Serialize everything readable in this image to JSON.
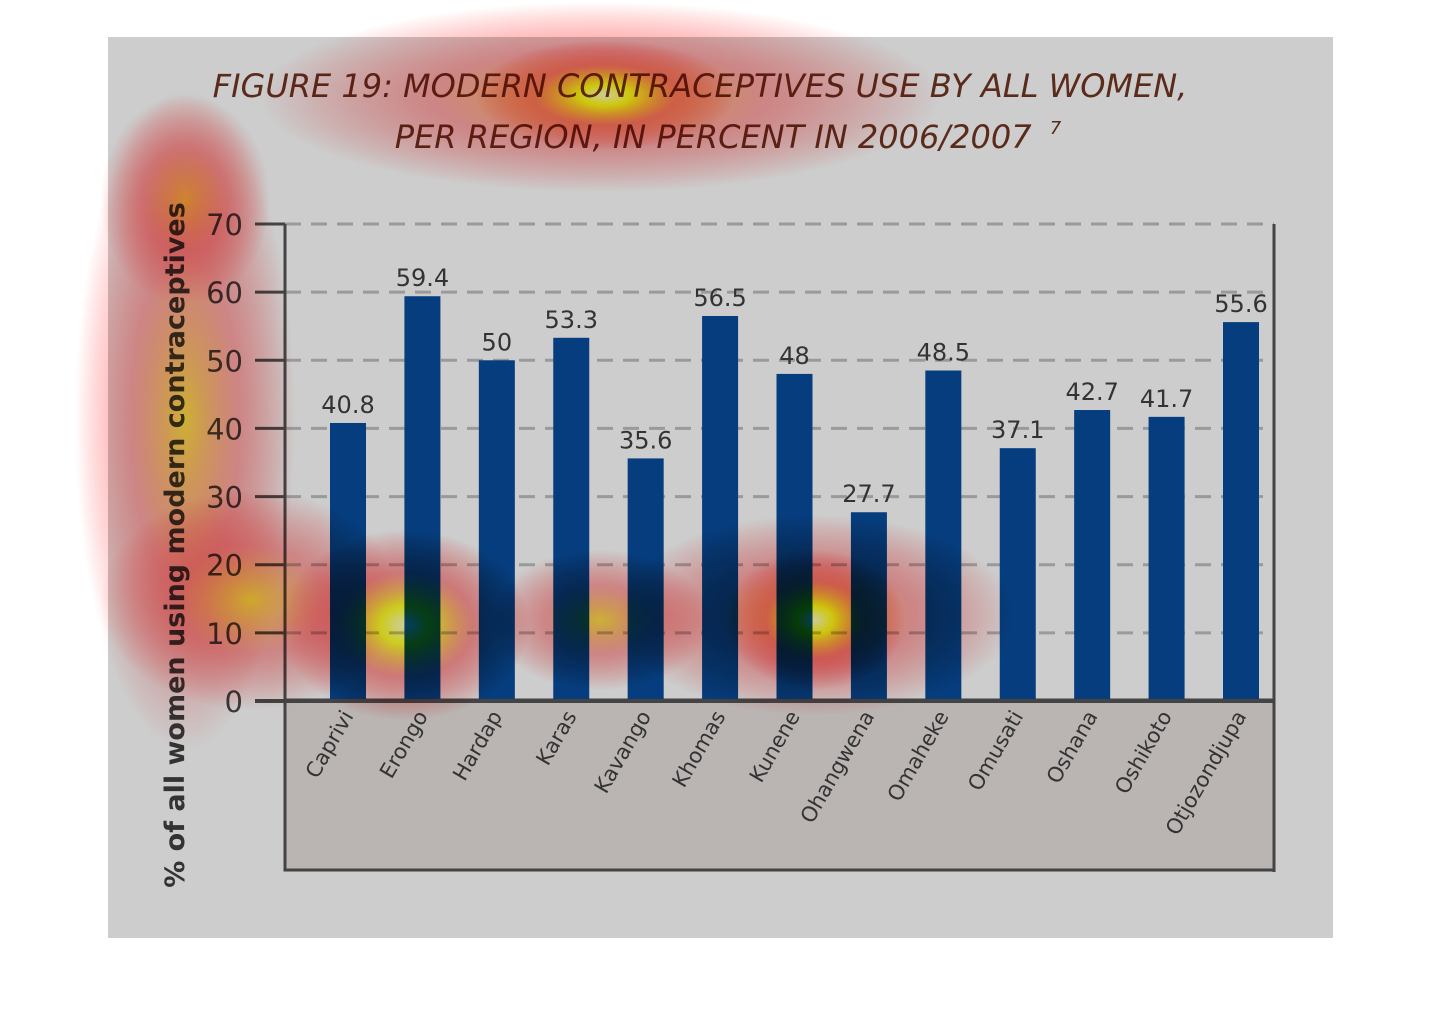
{
  "chart_data": {
    "type": "bar",
    "title_line1": "FIGURE 19: MODERN CONTRACEPTIVES USE BY ALL WOMEN,",
    "title_line2": "PER REGION, IN PERCENT IN 2006/2007",
    "title_footnote": "7",
    "xlabel": "",
    "ylabel": "% of all women using modern contraceptives",
    "ylim": [
      0,
      70
    ],
    "yticks": [
      0,
      10,
      20,
      30,
      40,
      50,
      60,
      70
    ],
    "grid": "horizontal dashed",
    "categories": [
      "Caprivi",
      "Erongo",
      "Hardap",
      "Karas",
      "Kavango",
      "Khomas",
      "Kunene",
      "Ohangwena",
      "Omaheke",
      "Omusati",
      "Oshana",
      "Oshikoto",
      "Otjozondjupa"
    ],
    "values": [
      40.8,
      59.4,
      50,
      53.3,
      35.6,
      56.5,
      48,
      27.7,
      48.5,
      37.1,
      42.7,
      41.7,
      55.6
    ],
    "value_labels": [
      "40.8",
      "59.4",
      "50",
      "53.3",
      "35.6",
      "56.5",
      "48",
      "27.7",
      "48.5",
      "37.1",
      "42.7",
      "41.7",
      "55.6"
    ],
    "colors": {
      "bar": "#063d7e",
      "panel_bg": "#cdcdcd",
      "axis_area_bg": "#bab4b2",
      "title": "#5a2a1a",
      "gridline": "#9a9a9a"
    },
    "overlay": "attention heatmap"
  }
}
